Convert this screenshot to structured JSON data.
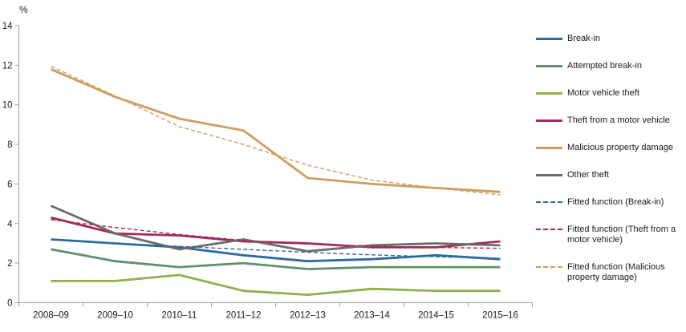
{
  "chart_data": {
    "type": "line",
    "title": "",
    "unit_label": "%",
    "xlabel": "",
    "ylabel": "%",
    "ylim": [
      0,
      14
    ],
    "ytick_step": 2,
    "grid": false,
    "legend_position": "right",
    "categories": [
      "2008–09",
      "2009–10",
      "2010–11",
      "2011–12",
      "2012–13",
      "2013–14",
      "2014–15",
      "2015–16"
    ],
    "series": [
      {
        "name": "Break-in",
        "color": "#2d6a9f",
        "style": "solid",
        "values": [
          3.2,
          3.0,
          2.8,
          2.4,
          2.1,
          2.2,
          2.4,
          2.2
        ]
      },
      {
        "name": "Attempted break-in",
        "color": "#5f9168",
        "style": "solid",
        "values": [
          2.7,
          2.1,
          1.8,
          2.0,
          1.7,
          1.8,
          1.8,
          1.8
        ]
      },
      {
        "name": "Motor vehicle theft",
        "color": "#8eb04d",
        "style": "solid",
        "values": [
          1.1,
          1.1,
          1.4,
          0.6,
          0.4,
          0.7,
          0.6,
          0.6
        ]
      },
      {
        "name": "Theft from a motor vehicle",
        "color": "#a32a5b",
        "style": "solid",
        "values": [
          4.3,
          3.5,
          3.4,
          3.1,
          3.0,
          2.8,
          2.8,
          3.1
        ]
      },
      {
        "name": "Malicious property damage",
        "color": "#ce9d62",
        "style": "solid",
        "values": [
          11.8,
          10.4,
          9.3,
          8.7,
          6.3,
          6.0,
          5.8,
          5.6
        ]
      },
      {
        "name": "Other theft",
        "color": "#6b6b6b",
        "style": "solid",
        "values": [
          4.9,
          3.5,
          2.7,
          3.2,
          2.6,
          2.9,
          3.0,
          2.9
        ]
      },
      {
        "name": "Fitted function (Break-in)",
        "color": "#2d6a9f",
        "style": "dashed",
        "values": [
          3.2,
          3.0,
          2.85,
          2.7,
          2.55,
          2.42,
          2.32,
          2.25
        ]
      },
      {
        "name": "Fitted function (Theft from a motor vehicle)",
        "color": "#a32a5b",
        "style": "dashed",
        "values": [
          4.2,
          3.8,
          3.45,
          3.15,
          2.97,
          2.86,
          2.79,
          2.75
        ]
      },
      {
        "name": "Fitted function (Malicious property damage)",
        "color": "#ce9d62",
        "style": "dashed",
        "values": [
          11.95,
          10.45,
          8.9,
          8.0,
          6.95,
          6.2,
          5.8,
          5.45
        ]
      }
    ]
  },
  "axis": {
    "color": "#9e9e9e",
    "text_color": "#1a1a1a"
  }
}
